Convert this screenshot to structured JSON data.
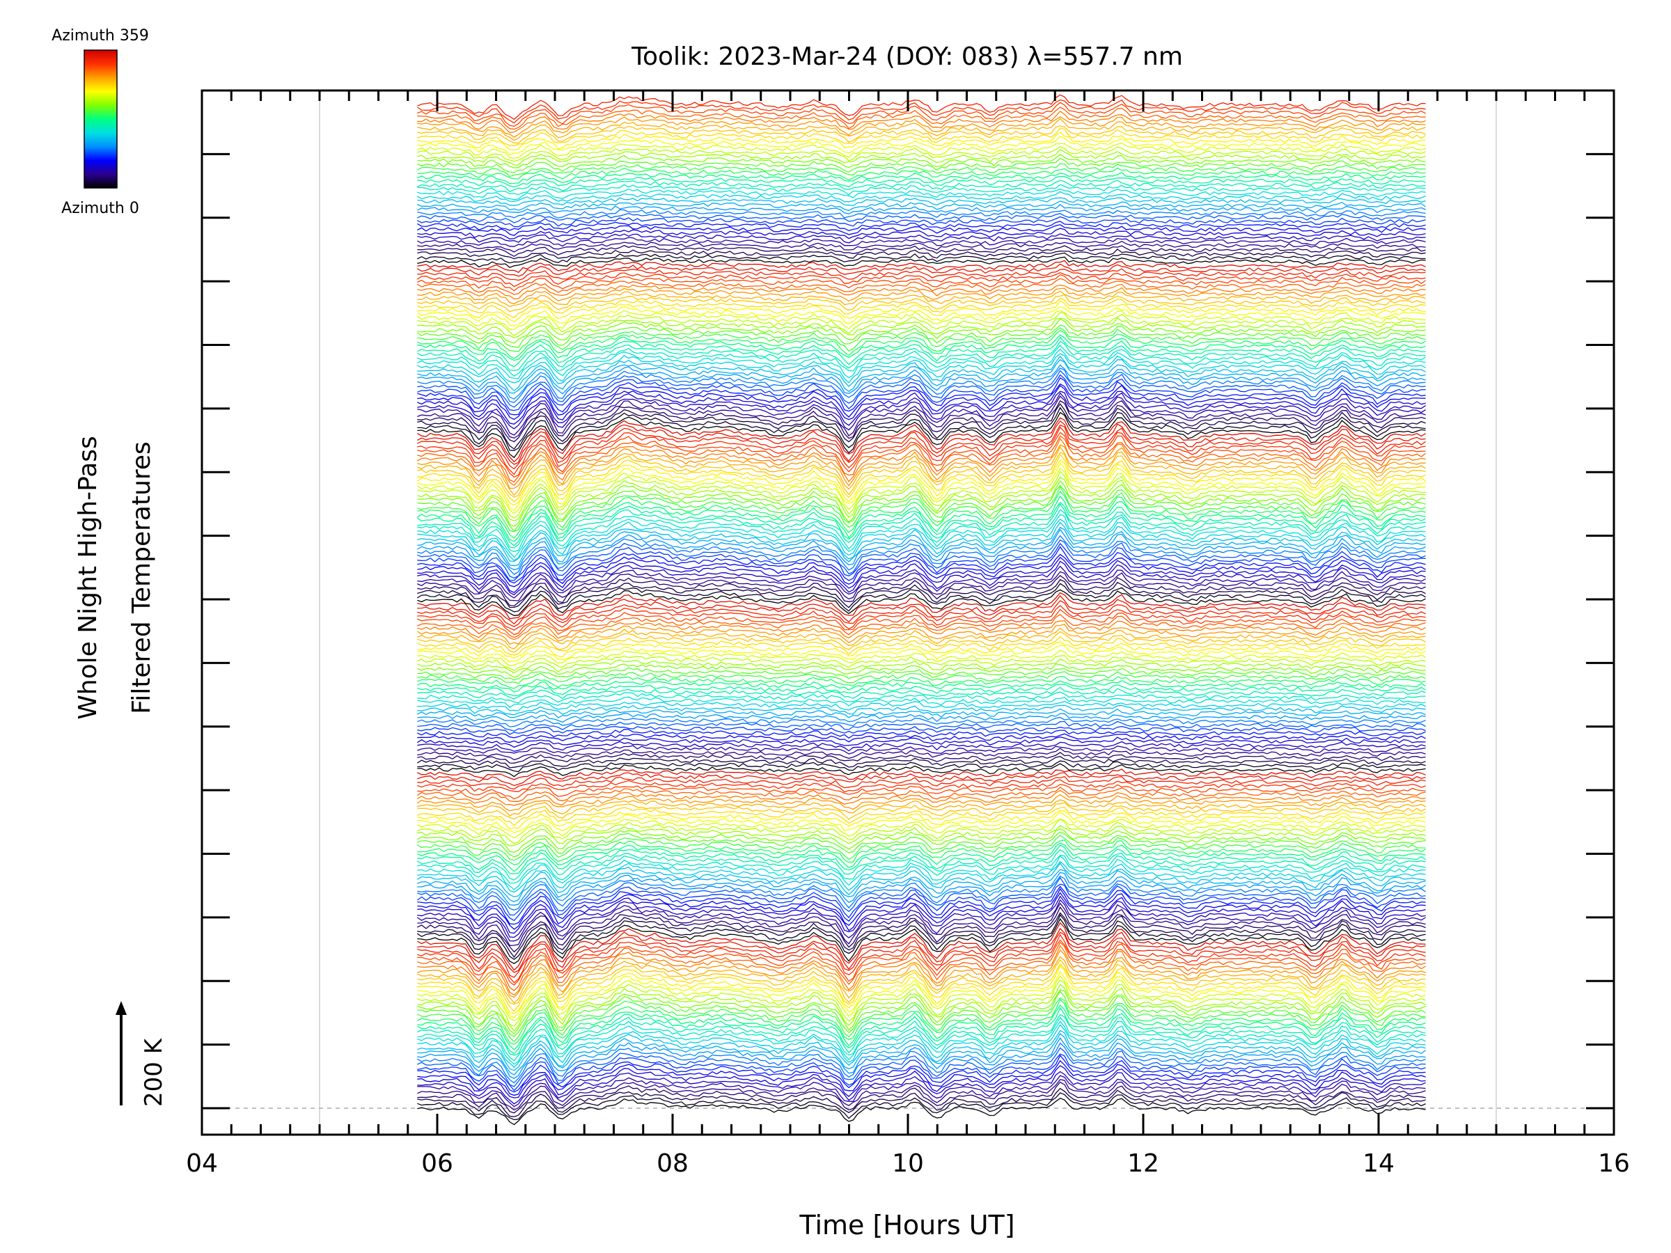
{
  "chart_data": {
    "type": "line",
    "title": "Toolik: 2023-Mar-24 (DOY: 083) λ=557.7 nm",
    "xlabel": "Time [Hours UT]",
    "ylabel_line1": "Whole Night High-Pass",
    "ylabel_line2": "Filtered Temperatures",
    "xlim": [
      4,
      16
    ],
    "x_ticks": [
      "04",
      "06",
      "08",
      "10",
      "12",
      "14",
      "16"
    ],
    "x_tick_values": [
      4,
      6,
      8,
      10,
      12,
      14,
      16
    ],
    "x_gridlines_hours": [
      5,
      15
    ],
    "data_start_hour": 5.83,
    "data_end_hour": 14.4,
    "scale_bar_label": "200 K",
    "scale_bar_kelvin": 200,
    "colorbar": {
      "top_label": "Azimuth 359",
      "bottom_label": "Azimuth 0",
      "colormap": [
        "#000000",
        "#2a0090",
        "#0000ff",
        "#0090ff",
        "#00e0e0",
        "#00ff80",
        "#80ff00",
        "#ffff00",
        "#ffa000",
        "#ff3000",
        "#d00000"
      ]
    },
    "series_description_count_approx": 760,
    "grid": "vertical lines at 05 and 15",
    "legend_placement": "top-left"
  }
}
